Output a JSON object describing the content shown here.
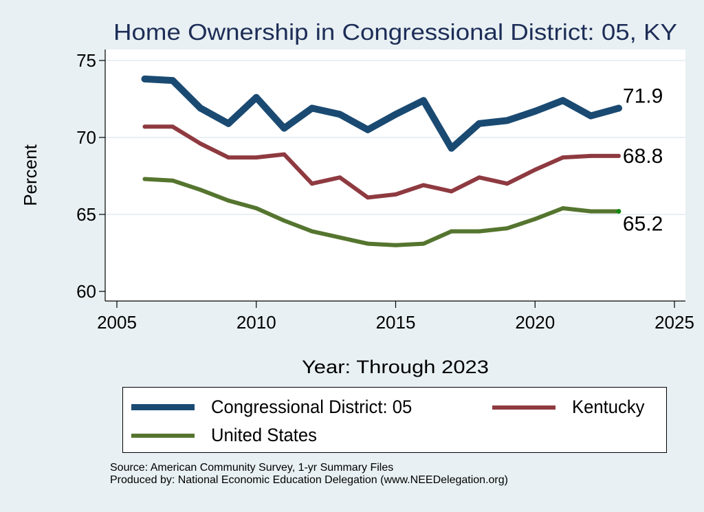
{
  "chart_data": {
    "type": "line",
    "title": "Home Ownership in Congressional District:  05, KY",
    "xlabel": "Year: Through 2023",
    "ylabel": "Percent",
    "xlim": [
      2005,
      2025
    ],
    "ylim": [
      60,
      75
    ],
    "xticks": [
      2005,
      2010,
      2015,
      2020,
      2025
    ],
    "yticks": [
      60,
      65,
      70,
      75
    ],
    "grid": "horizontal",
    "legend_position": "bottom",
    "x": [
      2006,
      2007,
      2008,
      2009,
      2010,
      2011,
      2012,
      2013,
      2014,
      2015,
      2016,
      2017,
      2018,
      2019,
      2020,
      2021,
      2022,
      2023
    ],
    "series": [
      {
        "name": "Congressional District:  05",
        "color": "#1a4a72",
        "values": [
          73.8,
          73.7,
          71.9,
          70.9,
          72.6,
          70.6,
          71.9,
          71.5,
          70.5,
          71.5,
          72.4,
          69.3,
          70.9,
          71.1,
          71.7,
          72.4,
          71.4,
          71.9
        ],
        "end_label": "71.9"
      },
      {
        "name": "Kentucky",
        "color": "#8e3a40",
        "values": [
          70.7,
          70.7,
          69.6,
          68.7,
          68.7,
          68.9,
          67.0,
          67.4,
          66.1,
          66.3,
          66.9,
          66.5,
          67.4,
          67.0,
          67.9,
          68.7,
          68.8,
          68.8
        ],
        "end_label": "68.8"
      },
      {
        "name": "United States",
        "color": "#55752f",
        "values": [
          67.3,
          67.2,
          66.6,
          65.9,
          65.4,
          64.6,
          63.9,
          63.5,
          63.1,
          63.0,
          63.1,
          63.9,
          63.9,
          64.1,
          64.7,
          65.4,
          65.2,
          65.2
        ],
        "end_label": "65.2"
      }
    ]
  },
  "footer": {
    "source": "Source: American Community Survey, 1-yr Summary Files",
    "produced_by": "Produced by: National Economic Education Delegation (www.NEEDelegation.org)"
  }
}
